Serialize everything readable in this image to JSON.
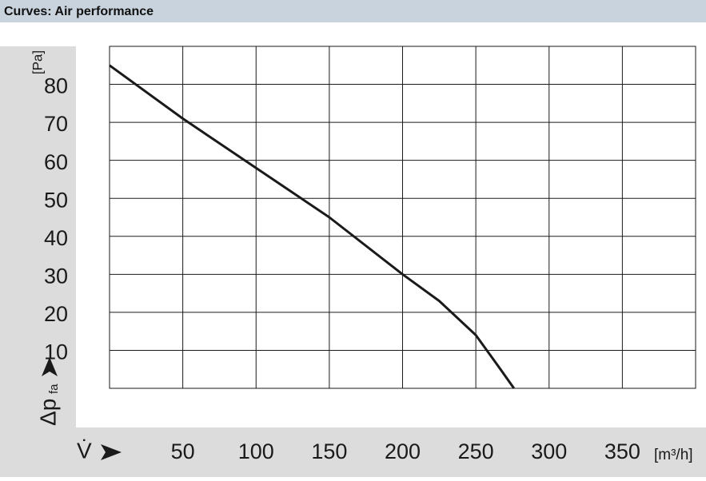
{
  "chart_data": {
    "type": "line",
    "title": "Curves: Air performance",
    "x_label": "V̇",
    "x_unit": "[m³/h]",
    "y_label": "Δp",
    "y_label_sub": "fa",
    "y_unit": "[Pa]",
    "series": [
      {
        "name": "Air performance",
        "color": "#1a1a1a",
        "x": [
          0,
          50,
          100,
          150,
          200,
          225,
          250,
          265,
          276
        ],
        "values": [
          85,
          71,
          58,
          45,
          30,
          23,
          14,
          6,
          0
        ]
      }
    ],
    "xlim": [
      0,
      400
    ],
    "xticks": [
      50,
      100,
      150,
      200,
      250,
      300,
      350
    ],
    "ylim": [
      0,
      90
    ],
    "yticks": [
      10,
      20,
      30,
      40,
      50,
      60,
      70,
      80
    ],
    "grid": true
  }
}
